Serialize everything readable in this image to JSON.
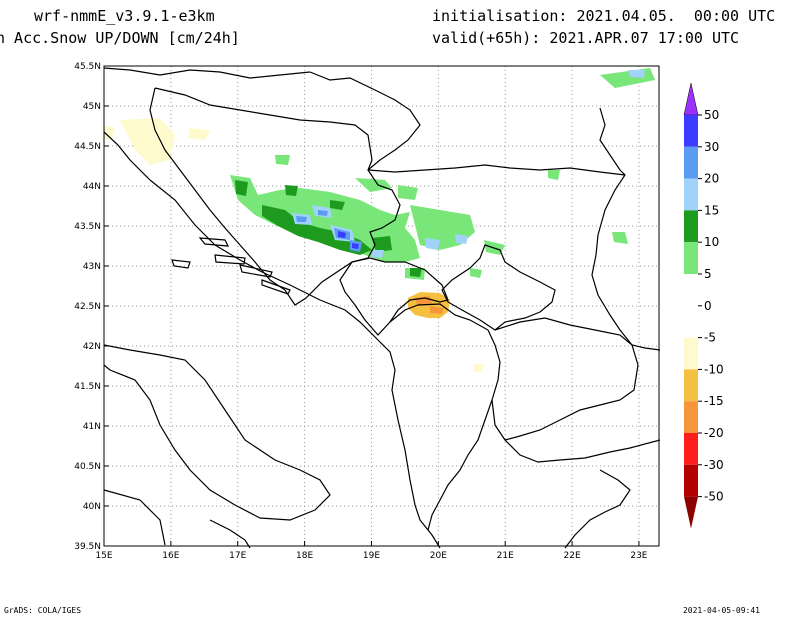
{
  "header": {
    "model": "wrf-nmmE_v3.9.1-e3km",
    "field": "n Acc.Snow UP/DOWN [cm/24h]",
    "init": "initialisation: 2021.04.05.  00:00 UTC",
    "valid": "valid(+65h): 2021.APR.07 17:00 UTC"
  },
  "map": {
    "lon_range": [
      15,
      23.3
    ],
    "lat_range": [
      39.5,
      45.5
    ],
    "lon_ticks": [
      "15E",
      "16E",
      "17E",
      "18E",
      "19E",
      "20E",
      "21E",
      "22E",
      "23E"
    ],
    "lat_ticks": [
      "39.5N",
      "40N",
      "40.5N",
      "41N",
      "41.5N",
      "42N",
      "42.5N",
      "43N",
      "43.5N",
      "44N",
      "44.5N",
      "45N",
      "45.5N"
    ],
    "grid": "dotted"
  },
  "colorbar": {
    "levels": [
      "50",
      "30",
      "20",
      "15",
      "10",
      "5",
      "0",
      "-5",
      "-10",
      "-15",
      "-20",
      "-30",
      "-50"
    ],
    "colors": [
      "#9b30ff",
      "#3c3cff",
      "#5a9cf0",
      "#a0d2fa",
      "#1e9b1e",
      "#78e678",
      "#ffffff",
      "#ffffff",
      "#fffacd",
      "#f5c040",
      "#f5963c",
      "#ff1e1e",
      "#b40000",
      "#8c0000"
    ]
  },
  "footer": {
    "left": "GrADS: COLA/IGES",
    "right": "2021-04-05-09:41"
  }
}
